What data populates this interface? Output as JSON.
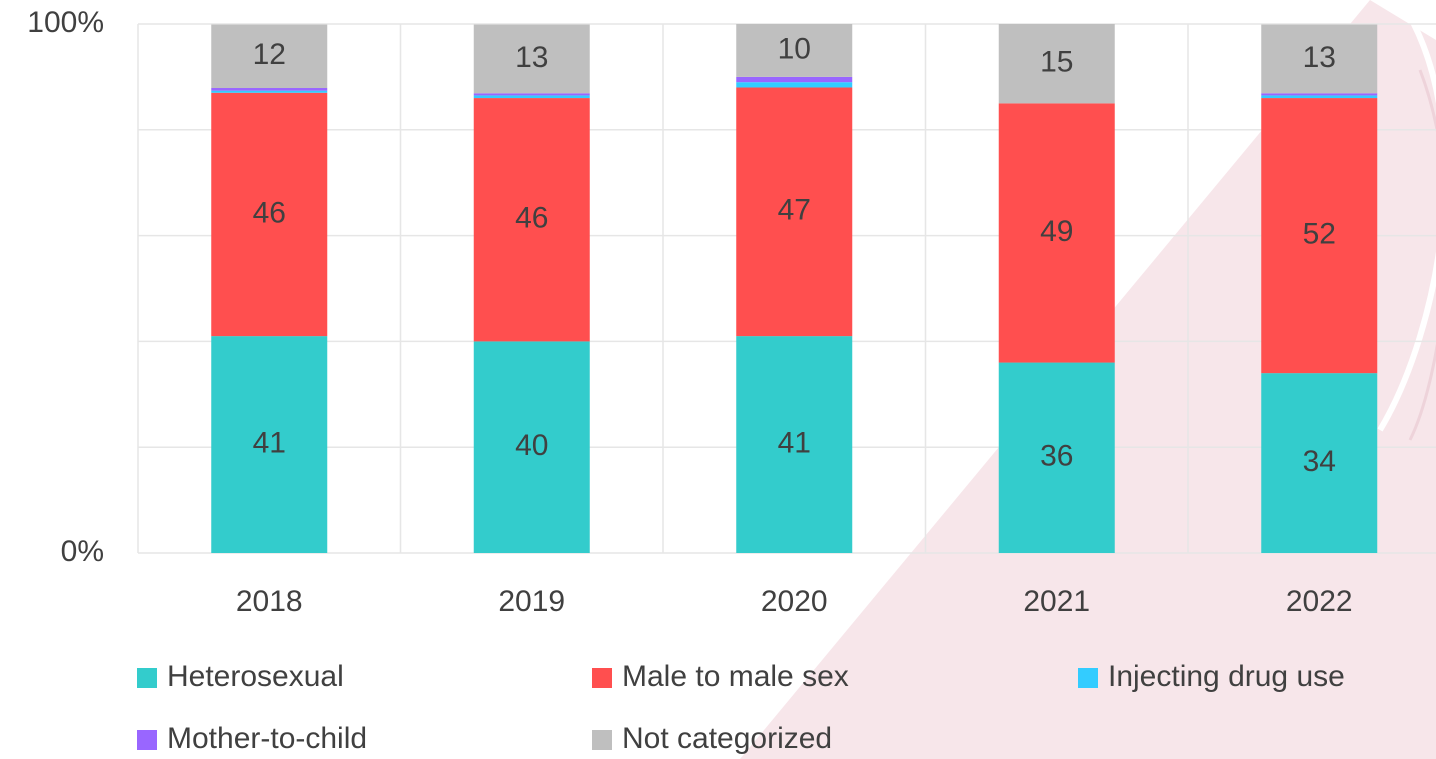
{
  "chart_data": {
    "type": "stacked_bar",
    "categories": [
      "2018",
      "2019",
      "2020",
      "2021",
      "2022"
    ],
    "series": [
      {
        "name": "Heterosexual",
        "color": "#33cccc",
        "values": [
          41,
          40,
          41,
          36,
          34
        ],
        "show_labels": true
      },
      {
        "name": "Male to male sex",
        "color": "#ff4f4f",
        "values": [
          46,
          46,
          47,
          49,
          52
        ],
        "show_labels": true
      },
      {
        "name": "Injecting drug use",
        "color": "#33ccff",
        "values": [
          0.4,
          0.5,
          1,
          0,
          0.5
        ],
        "show_labels": false
      },
      {
        "name": "Mother-to-child",
        "color": "#9966ff",
        "values": [
          0.5,
          0.4,
          1,
          0,
          0.4
        ],
        "show_labels": false
      },
      {
        "name": "Not categorized",
        "color": "#bfbfbf",
        "values": [
          12,
          13,
          10,
          15,
          13
        ],
        "show_labels": true
      }
    ],
    "ylim": [
      0,
      100
    ],
    "yticks": [
      {
        "value": 0,
        "label": "0%"
      },
      {
        "value": 100,
        "label": "100%"
      }
    ],
    "minor_gridlines": [
      20,
      40,
      60,
      80
    ],
    "grid": true
  }
}
